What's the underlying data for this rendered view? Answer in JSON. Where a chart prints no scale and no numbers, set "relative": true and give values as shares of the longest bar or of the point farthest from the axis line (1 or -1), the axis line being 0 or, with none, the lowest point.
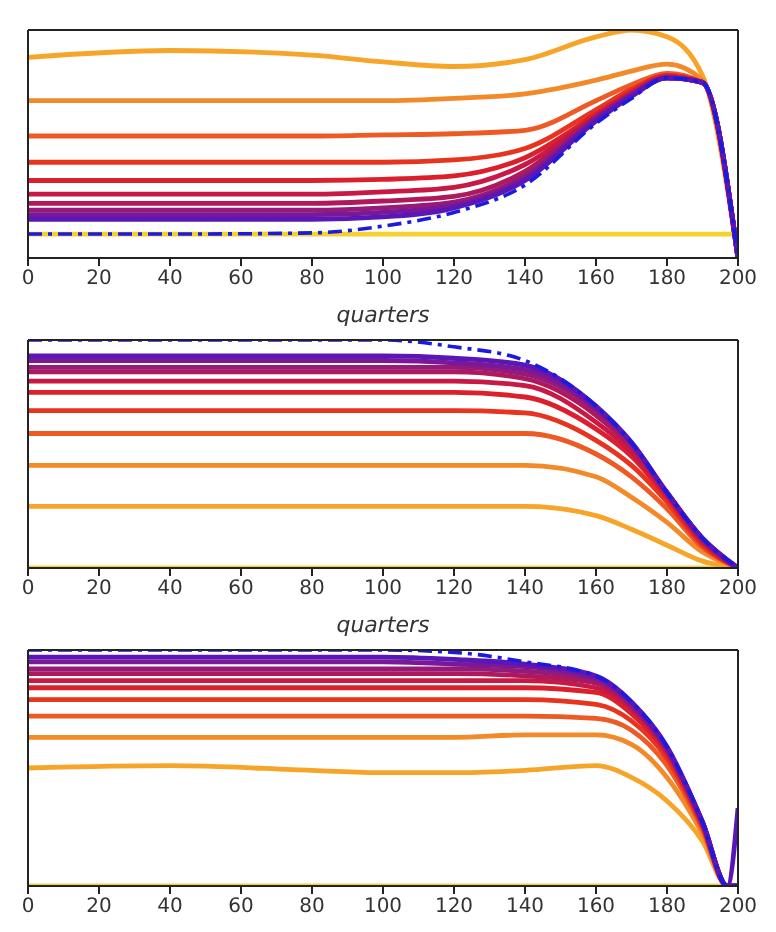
{
  "chart_data": [
    {
      "type": "line",
      "relative": true,
      "xlabel": "quarters",
      "xlim": [
        0,
        200
      ],
      "xticks": [
        0,
        20,
        40,
        60,
        80,
        100,
        120,
        140,
        160,
        180,
        200
      ],
      "legend": false,
      "grid": false,
      "marker": "none",
      "x": [
        0,
        40,
        80,
        100,
        120,
        140,
        160,
        170,
        180,
        190,
        200
      ],
      "series": [
        {
          "color": "#f5d130",
          "values": [
            0.105,
            0.105,
            0.105,
            0.105,
            0.105,
            0.105,
            0.105,
            0.105,
            0.105,
            0.105,
            0.105
          ]
        },
        {
          "color": "#f7a528",
          "values": [
            0.88,
            0.91,
            0.89,
            0.86,
            0.84,
            0.87,
            0.97,
            1.0,
            0.97,
            0.8,
            0
          ]
        },
        {
          "color": "#f28a2a",
          "values": [
            0.69,
            0.69,
            0.69,
            0.69,
            0.7,
            0.72,
            0.78,
            0.82,
            0.85,
            0.78,
            0
          ]
        },
        {
          "color": "#ee5a24",
          "values": [
            0.535,
            0.535,
            0.535,
            0.54,
            0.545,
            0.56,
            0.69,
            0.76,
            0.81,
            0.77,
            0
          ]
        },
        {
          "color": "#e8331f",
          "values": [
            0.42,
            0.42,
            0.42,
            0.42,
            0.43,
            0.48,
            0.65,
            0.74,
            0.8,
            0.77,
            0
          ]
        },
        {
          "color": "#dc1f2c",
          "values": [
            0.34,
            0.34,
            0.34,
            0.345,
            0.36,
            0.44,
            0.63,
            0.73,
            0.8,
            0.77,
            0
          ]
        },
        {
          "color": "#c81845",
          "values": [
            0.28,
            0.28,
            0.28,
            0.29,
            0.31,
            0.41,
            0.62,
            0.72,
            0.79,
            0.77,
            0
          ]
        },
        {
          "color": "#b0185c",
          "values": [
            0.24,
            0.24,
            0.24,
            0.25,
            0.27,
            0.38,
            0.62,
            0.72,
            0.79,
            0.77,
            0
          ]
        },
        {
          "color": "#951a7a",
          "values": [
            0.21,
            0.21,
            0.21,
            0.22,
            0.245,
            0.36,
            0.61,
            0.72,
            0.79,
            0.77,
            0
          ]
        },
        {
          "color": "#7a1897",
          "values": [
            0.19,
            0.19,
            0.19,
            0.2,
            0.23,
            0.35,
            0.61,
            0.71,
            0.79,
            0.77,
            0
          ]
        },
        {
          "color": "#5b16b8",
          "values": [
            0.17,
            0.17,
            0.17,
            0.18,
            0.22,
            0.34,
            0.6,
            0.71,
            0.79,
            0.77,
            0
          ]
        },
        {
          "color": "#1a1ae0",
          "line_style": "dashed",
          "values": [
            0.105,
            0.105,
            0.11,
            0.14,
            0.2,
            0.32,
            0.59,
            0.7,
            0.79,
            0.77,
            0
          ]
        }
      ]
    },
    {
      "type": "line",
      "relative": true,
      "xlabel": "quarters",
      "xlim": [
        0,
        200
      ],
      "xticks": [
        0,
        20,
        40,
        60,
        80,
        100,
        120,
        140,
        160,
        180,
        200
      ],
      "legend": false,
      "grid": false,
      "marker": "none",
      "x": [
        0,
        40,
        80,
        100,
        120,
        140,
        160,
        170,
        180,
        190,
        200
      ],
      "series": [
        {
          "color": "#f5d130",
          "values": [
            0,
            0,
            0,
            0,
            0,
            0,
            0,
            0,
            0,
            0,
            0
          ]
        },
        {
          "color": "#f7a528",
          "values": [
            0.27,
            0.27,
            0.27,
            0.27,
            0.27,
            0.27,
            0.23,
            0.17,
            0.1,
            0.03,
            0
          ]
        },
        {
          "color": "#f28a2a",
          "values": [
            0.45,
            0.45,
            0.45,
            0.45,
            0.45,
            0.45,
            0.4,
            0.31,
            0.2,
            0.07,
            0
          ]
        },
        {
          "color": "#ee5a24",
          "values": [
            0.59,
            0.59,
            0.59,
            0.59,
            0.59,
            0.59,
            0.5,
            0.4,
            0.26,
            0.09,
            0
          ]
        },
        {
          "color": "#e8331f",
          "values": [
            0.69,
            0.69,
            0.69,
            0.69,
            0.69,
            0.68,
            0.56,
            0.45,
            0.29,
            0.1,
            0
          ]
        },
        {
          "color": "#dc1f2c",
          "values": [
            0.77,
            0.77,
            0.77,
            0.77,
            0.77,
            0.75,
            0.61,
            0.49,
            0.31,
            0.11,
            0
          ]
        },
        {
          "color": "#c81845",
          "values": [
            0.82,
            0.82,
            0.82,
            0.82,
            0.82,
            0.8,
            0.64,
            0.51,
            0.32,
            0.12,
            0
          ]
        },
        {
          "color": "#b0185c",
          "values": [
            0.86,
            0.86,
            0.86,
            0.86,
            0.86,
            0.83,
            0.67,
            0.53,
            0.33,
            0.12,
            0
          ]
        },
        {
          "color": "#951a7a",
          "values": [
            0.88,
            0.88,
            0.88,
            0.88,
            0.88,
            0.85,
            0.69,
            0.54,
            0.33,
            0.13,
            0
          ]
        },
        {
          "color": "#7a1897",
          "values": [
            0.91,
            0.91,
            0.91,
            0.91,
            0.9,
            0.87,
            0.7,
            0.55,
            0.33,
            0.13,
            0
          ]
        },
        {
          "color": "#5b16b8",
          "values": [
            0.93,
            0.93,
            0.93,
            0.93,
            0.92,
            0.89,
            0.71,
            0.55,
            0.33,
            0.13,
            0
          ]
        },
        {
          "color": "#1a1ae0",
          "line_style": "dashed",
          "values": [
            1.0,
            1.0,
            1.0,
            1.0,
            0.97,
            0.91,
            0.71,
            0.55,
            0.33,
            0.13,
            0
          ]
        }
      ]
    },
    {
      "type": "line",
      "relative": true,
      "xlim": [
        0,
        200
      ],
      "xticks": [
        0,
        20,
        40,
        60,
        80,
        100,
        120,
        140,
        160,
        180,
        200
      ],
      "legend": false,
      "grid": false,
      "marker": "none",
      "x": [
        0,
        40,
        80,
        100,
        120,
        140,
        160,
        170,
        180,
        190,
        197,
        200
      ],
      "series": [
        {
          "color": "#f5d130",
          "values": [
            0,
            0,
            0,
            0,
            0,
            0,
            0,
            0,
            0,
            0,
            0,
            0
          ]
        },
        {
          "color": "#f7a528",
          "values": [
            0.5,
            0.51,
            0.49,
            0.48,
            0.48,
            0.49,
            0.51,
            0.46,
            0.36,
            0.19,
            0,
            0
          ]
        },
        {
          "color": "#f28a2a",
          "values": [
            0.63,
            0.63,
            0.63,
            0.63,
            0.63,
            0.64,
            0.64,
            0.6,
            0.46,
            0.22,
            0,
            0
          ]
        },
        {
          "color": "#ee5a24",
          "values": [
            0.72,
            0.72,
            0.72,
            0.72,
            0.72,
            0.72,
            0.71,
            0.66,
            0.51,
            0.24,
            0,
            0
          ]
        },
        {
          "color": "#e8331f",
          "values": [
            0.79,
            0.79,
            0.79,
            0.79,
            0.79,
            0.79,
            0.77,
            0.7,
            0.54,
            0.25,
            0,
            0
          ]
        },
        {
          "color": "#dc1f2c",
          "values": [
            0.84,
            0.84,
            0.84,
            0.84,
            0.84,
            0.84,
            0.82,
            0.73,
            0.56,
            0.26,
            0,
            0
          ]
        },
        {
          "color": "#c81845",
          "values": [
            0.87,
            0.87,
            0.87,
            0.87,
            0.87,
            0.87,
            0.84,
            0.75,
            0.57,
            0.26,
            0,
            0
          ]
        },
        {
          "color": "#b0185c",
          "values": [
            0.9,
            0.9,
            0.9,
            0.9,
            0.9,
            0.89,
            0.86,
            0.76,
            0.58,
            0.27,
            0,
            0
          ]
        },
        {
          "color": "#951a7a",
          "values": [
            0.92,
            0.92,
            0.92,
            0.92,
            0.92,
            0.91,
            0.87,
            0.77,
            0.58,
            0.27,
            0,
            0
          ]
        },
        {
          "color": "#7a1897",
          "values": [
            0.95,
            0.95,
            0.95,
            0.95,
            0.94,
            0.93,
            0.88,
            0.77,
            0.58,
            0.27,
            0,
            0
          ]
        },
        {
          "color": "#5b16b8",
          "values": [
            0.97,
            0.97,
            0.97,
            0.97,
            0.96,
            0.94,
            0.89,
            0.78,
            0.59,
            0.27,
            0,
            0.33
          ]
        },
        {
          "color": "#1a1ae0",
          "line_style": "dashed",
          "values": [
            1.0,
            1.0,
            1.0,
            1.0,
            0.99,
            0.95,
            0.89,
            0.78,
            0.59,
            0.27,
            0,
            0
          ]
        }
      ]
    }
  ]
}
